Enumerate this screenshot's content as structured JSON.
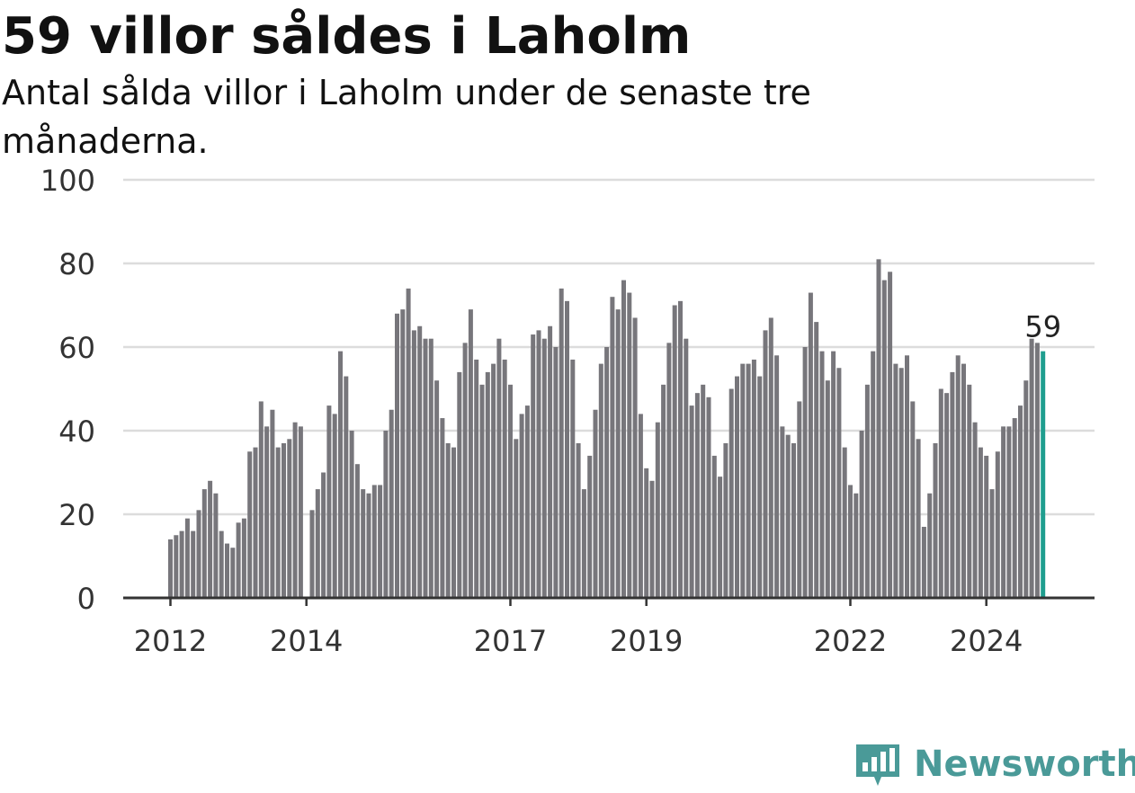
{
  "header": {
    "title": "59 villor såldes i Laholm",
    "subtitle": "Antal sålda villor i Laholm under de senaste tre månaderna."
  },
  "colors": {
    "bar": "#77767b",
    "highlight": "#1f9e8f",
    "grid": "#dcdcdc",
    "axis": "#333333",
    "brand": "#4a9a98"
  },
  "branding": {
    "name": "Newsworthy",
    "icon": "chart-speech-bubble-icon"
  },
  "chart_data": {
    "type": "bar",
    "title": "59 villor såldes i Laholm",
    "subtitle": "Antal sålda villor i Laholm under de senaste tre månaderna.",
    "ylim": [
      0,
      100
    ],
    "yticks": [
      0,
      20,
      40,
      60,
      80,
      100
    ],
    "grid": true,
    "x_start": "2012-01",
    "x_labels": [
      {
        "label": "2012",
        "month": "2012-01"
      },
      {
        "label": "2014",
        "month": "2014-01"
      },
      {
        "label": "2017",
        "month": "2017-01"
      },
      {
        "label": "2019",
        "month": "2019-01"
      },
      {
        "label": "2022",
        "month": "2022-01"
      },
      {
        "label": "2024",
        "month": "2024-01"
      }
    ],
    "values": [
      14,
      15,
      16,
      19,
      16,
      21,
      26,
      28,
      25,
      16,
      13,
      12,
      18,
      19,
      35,
      36,
      47,
      41,
      45,
      36,
      37,
      38,
      42,
      41,
      0,
      21,
      26,
      30,
      46,
      44,
      59,
      53,
      40,
      32,
      26,
      25,
      27,
      27,
      40,
      45,
      68,
      69,
      74,
      64,
      65,
      62,
      62,
      52,
      43,
      37,
      36,
      54,
      61,
      69,
      57,
      51,
      54,
      56,
      62,
      57,
      51,
      38,
      44,
      46,
      63,
      64,
      62,
      65,
      60,
      74,
      71,
      57,
      37,
      26,
      34,
      45,
      56,
      60,
      72,
      69,
      76,
      73,
      67,
      44,
      31,
      28,
      42,
      51,
      61,
      70,
      71,
      62,
      46,
      49,
      51,
      48,
      34,
      29,
      37,
      50,
      53,
      56,
      56,
      57,
      53,
      64,
      67,
      58,
      41,
      39,
      37,
      47,
      60,
      73,
      66,
      59,
      52,
      59,
      55,
      36,
      27,
      25,
      40,
      51,
      59,
      81,
      76,
      78,
      56,
      55,
      58,
      47,
      38,
      17,
      25,
      37,
      50,
      49,
      54,
      58,
      56,
      51,
      42,
      36,
      34,
      26,
      35,
      41,
      41,
      43,
      46,
      52,
      62,
      61,
      59
    ],
    "highlight_last": true,
    "last_value_label": "59"
  }
}
